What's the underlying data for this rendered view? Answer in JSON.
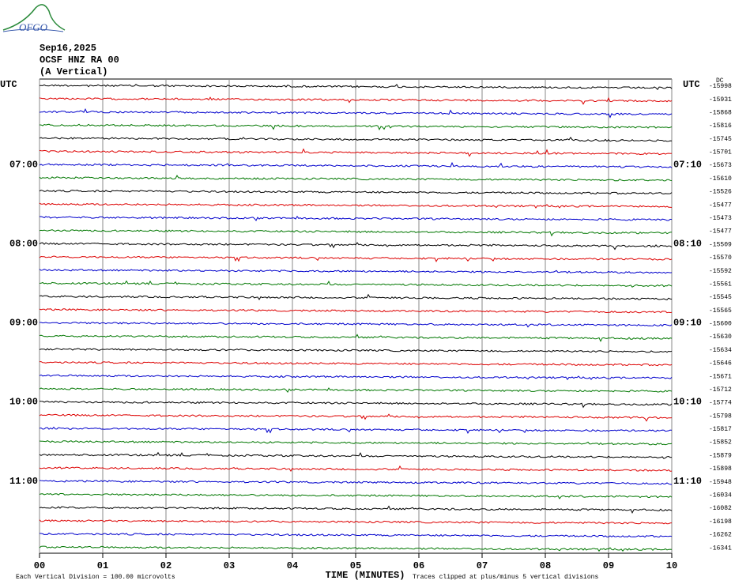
{
  "header": {
    "logo": "OFGO",
    "date": "Sep16,2025",
    "station": "OCSF HNZ RA 00",
    "component": "(A Vertical)"
  },
  "left_axis": {
    "label": "UTC",
    "times": [
      "07:00",
      "08:00",
      "09:00",
      "10:00",
      "11:00"
    ]
  },
  "right_axis": {
    "label": "UTC",
    "dc_label": "DC",
    "times": [
      "07:10",
      "08:10",
      "09:10",
      "10:10",
      "11:10"
    ]
  },
  "traces": {
    "colors": [
      "#000000",
      "#dd0000",
      "#0000cc",
      "#007700"
    ],
    "dc_offsets": [
      -15998,
      -15931,
      -15868,
      -15816,
      -15745,
      -15701,
      -15673,
      -15610,
      -15526,
      -15477,
      -15473,
      -15477,
      -15509,
      -15570,
      -15592,
      -15561,
      -15545,
      -15565,
      -15600,
      -15630,
      -15634,
      -15646,
      -15671,
      -15712,
      -15774,
      -15798,
      -15817,
      -15852,
      -15879,
      -15898,
      -15948,
      -16034,
      -16082,
      -16198,
      -16262,
      -16341
    ]
  },
  "x_axis": {
    "ticks": [
      "00",
      "01",
      "02",
      "03",
      "04",
      "05",
      "06",
      "07",
      "08",
      "09",
      "10"
    ],
    "label": "TIME (MINUTES)"
  },
  "footer": {
    "scale": "Each Vertical Division =  100.00 microvolts",
    "clip": "Traces clipped at plus/minus 5 vertical divisions"
  }
}
